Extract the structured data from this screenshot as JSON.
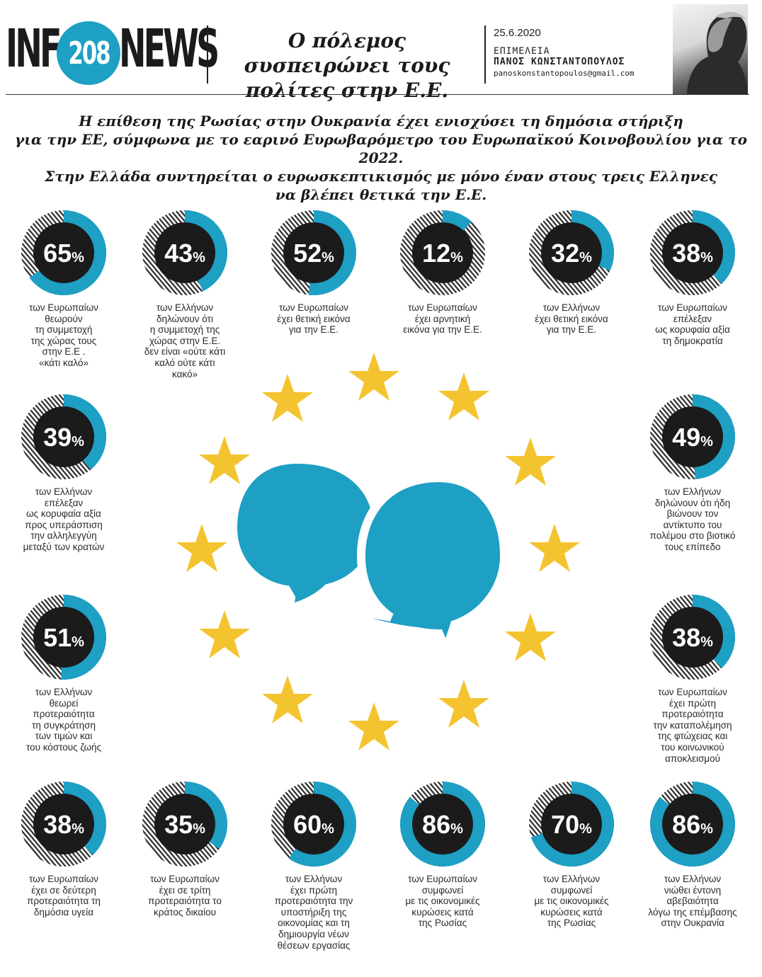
{
  "header": {
    "logo_left": "INF",
    "logo_number": "208",
    "logo_right": "NEWS",
    "headline": "Ο πόλεμος συσπειρώνει τους πολίτες στην Ε.Ε.",
    "date": "25.6.2020",
    "editor_label": "ΕΠΙΜΕΛΕΙΑ",
    "editor_name": "ΠΑΝΟΣ ΚΩΝΣΤΑΝΤΟΠΟΥΛΟΣ",
    "editor_email": "panoskonstantopoulos@gmail.com"
  },
  "subtitle": {
    "line1": "Η επίθεση της Ρωσίας στην Ουκρανία έχει ενισχύσει τη δημόσια στήριξη",
    "line2": "για την ΕΕ, σύμφωνα με το εαρινό Ευρωβαρόμετρο του Ευρωπαϊκού Κοινοβουλίου για το 2022.",
    "line3": "Στην Ελλάδα συντηρείται ο ευρωσκεπτικισμός με μόνο έναν στους τρεις Ελληνες",
    "line4": "να βλέπει θετικά την Ε.Ε."
  },
  "colors": {
    "accent": "#1e9fc4",
    "disc": "#1b1b1b",
    "star": "#f4c430",
    "hatch": "#2a2a2a"
  },
  "chart_data": {
    "type": "donut",
    "unit": "%",
    "stats": [
      {
        "value": 65,
        "caption": [
          "των Ευρωπαίων",
          "θεωρούν",
          "τη συμμετοχή",
          "της χώρας τους",
          "στην Ε.Ε .",
          "«κάτι καλό»"
        ]
      },
      {
        "value": 43,
        "caption": [
          "των Ελλήνων",
          "δηλώνουν ότι",
          "η συμμετοχή της",
          "χώρας στην Ε.Ε.",
          "δεν είναι «ούτε κάτι",
          "καλό ούτε κάτι",
          "κακό»"
        ]
      },
      {
        "value": 52,
        "caption": [
          "των Ευρωπαίων",
          "έχει θετική εικόνα",
          "για την Ε.Ε."
        ]
      },
      {
        "value": 12,
        "caption": [
          "των Ευρωπαίων",
          "έχει αρνητική",
          "εικόνα για την Ε.Ε."
        ]
      },
      {
        "value": 32,
        "caption": [
          "των Ελλήνων",
          "έχει θετική εικόνα",
          "για την Ε.Ε."
        ]
      },
      {
        "value": 38,
        "caption": [
          "των Ευρωπαίων",
          "επέλεξαν",
          "ως κορυφαία αξία",
          "τη δημοκρατία"
        ]
      },
      {
        "value": 39,
        "caption": [
          "των Ελλήνων",
          "επέλεξαν",
          "ως κορυφαία αξία",
          "προς υπεράσπιση",
          "την αλληλεγγύη",
          "μεταξύ των κρατών"
        ]
      },
      {
        "value": 49,
        "caption": [
          "των Ελλήνων",
          "δηλώνουν ότι ήδη",
          "βιώνουν τον",
          "αντίκτυπο του",
          "πολέμου στο βιοτικό",
          "τους επίπεδο"
        ]
      },
      {
        "value": 51,
        "caption": [
          "των Ελλήνων",
          "θεωρεί",
          "προτεραιότητα",
          "τη συγκράτηση",
          "των τιμών και",
          "του κόστους ζωής"
        ]
      },
      {
        "value": 38,
        "caption": [
          "των Ευρωπαίων",
          "έχει πρώτη",
          "προτεραιότητα",
          "την καταπολέμηση",
          "της φτώχειας και",
          "του κοινωνικού",
          "αποκλεισμού"
        ]
      },
      {
        "value": 38,
        "caption": [
          "των Ευρωπαίων",
          "έχει σε δεύτερη",
          "προτεραιότητα τη",
          "δημόσια υγεία"
        ]
      },
      {
        "value": 35,
        "caption": [
          "των Ευρωπαίων",
          "έχει σε τρίτη",
          "προτεραιότητα το",
          "κράτος δικαίου"
        ]
      },
      {
        "value": 60,
        "caption": [
          "των Ελλήνων",
          "έχει πρώτη",
          "προτεραιότητα την",
          "υποστήριξη της",
          "οικονομίας και τη",
          "δημιουργία νέων",
          "θέσεων εργασίας"
        ]
      },
      {
        "value": 86,
        "caption": [
          "των Ευρωπαίων",
          "συμφωνεί",
          "με τις οικονομικές",
          "κυρώσεις κατά",
          "της Ρωσίας"
        ]
      },
      {
        "value": 70,
        "caption": [
          "των Ελλήνων",
          "συμφωνεί",
          "με τις οικονομικές",
          "κυρώσεις κατά",
          "της Ρωσίας"
        ]
      },
      {
        "value": 86,
        "caption": [
          "των Ελλήνων",
          "νιώθει έντονη",
          "αβεβαιότητα",
          "λόγω της επέμβασης",
          "στην Ουκρανία"
        ]
      }
    ]
  }
}
